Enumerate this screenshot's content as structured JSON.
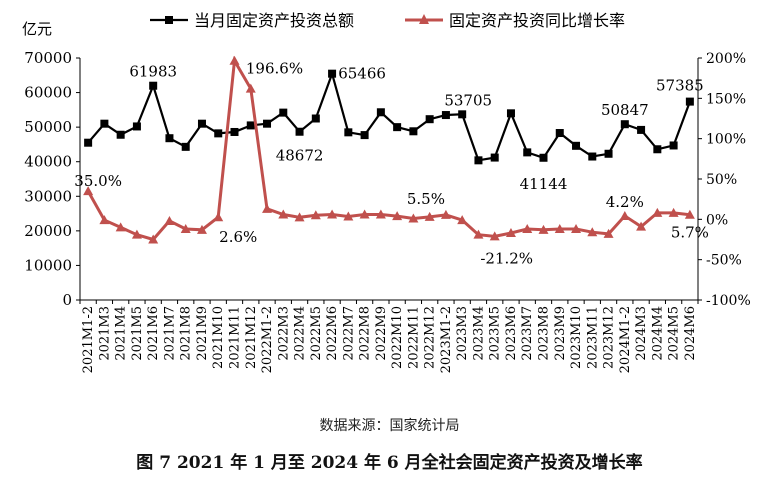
{
  "chart_data": {
    "type": "line",
    "title": "",
    "y_unit_label": "亿元",
    "categories": [
      "2021M1-2",
      "2021M3",
      "2021M4",
      "2021M5",
      "2021M6",
      "2021M7",
      "2021M8",
      "2021M9",
      "2021M10",
      "2021M11",
      "2021M12",
      "2022M1-2",
      "2022M3",
      "2022M4",
      "2022M5",
      "2022M6",
      "2022M7",
      "2022M8",
      "2022M9",
      "2022M10",
      "2022M11",
      "2022M12",
      "2023M1-2",
      "2023M3",
      "2023M4",
      "2023M5",
      "2023M6",
      "2023M7",
      "2023M8",
      "2023M9",
      "2023M10",
      "2023M11",
      "2023M12",
      "2024M1-2",
      "2024M3",
      "2024M4",
      "2024M5",
      "2024M6"
    ],
    "ylim_left": [
      0,
      70000
    ],
    "yticks_left": [
      "0",
      "10000",
      "20000",
      "30000",
      "40000",
      "50000",
      "60000",
      "70000"
    ],
    "ylim_right": [
      -100,
      200
    ],
    "yticks_right": [
      "-100%",
      "-50%",
      "0%",
      "50%",
      "100%",
      "150%",
      "200%"
    ],
    "series": [
      {
        "name": "当月固定资产投资总额",
        "axis": "left",
        "color": "#000000",
        "marker": "square",
        "values": [
          45500,
          51000,
          47800,
          50200,
          61983,
          46800,
          44300,
          51000,
          48200,
          48600,
          50500,
          51000,
          54200,
          48672,
          52500,
          65466,
          48500,
          47700,
          54300,
          50000,
          48800,
          52300,
          53500,
          53705,
          40400,
          41200,
          54000,
          42700,
          41144,
          48300,
          44600,
          41500,
          42300,
          50847,
          49200,
          43600,
          44700,
          57385
        ]
      },
      {
        "name": "固定资产投资同比增长率",
        "axis": "right",
        "color": "#c0504d",
        "marker": "triangle",
        "values": [
          35.0,
          -1.0,
          -10.0,
          -19.0,
          -25.0,
          -2.0,
          -12.0,
          -13.0,
          2.6,
          196.6,
          162.0,
          13.0,
          6.0,
          2.5,
          5.0,
          6.0,
          3.5,
          6.0,
          6.0,
          4.0,
          1.0,
          3.0,
          5.5,
          -1.0,
          -19.0,
          -21.2,
          -17.0,
          -12.0,
          -13.0,
          -12.0,
          -12.0,
          -16.0,
          -18.0,
          4.2,
          -9.0,
          8.0,
          8.0,
          5.7
        ]
      }
    ],
    "data_labels": [
      {
        "series": 0,
        "index": 4,
        "text": "61983"
      },
      {
        "series": 0,
        "index": 13,
        "text": "48672"
      },
      {
        "series": 0,
        "index": 15,
        "text": "65466"
      },
      {
        "series": 0,
        "index": 23,
        "text": "53705"
      },
      {
        "series": 0,
        "index": 28,
        "text": "41144"
      },
      {
        "series": 0,
        "index": 33,
        "text": "50847"
      },
      {
        "series": 0,
        "index": 37,
        "text": "57385"
      },
      {
        "series": 1,
        "index": 0,
        "text": "35.0%"
      },
      {
        "series": 1,
        "index": 8,
        "text": "2.6%"
      },
      {
        "series": 1,
        "index": 9,
        "text": "196.6%"
      },
      {
        "series": 1,
        "index": 22,
        "text": "5.5%"
      },
      {
        "series": 1,
        "index": 25,
        "text": "-21.2%"
      },
      {
        "series": 1,
        "index": 33,
        "text": "4.2%"
      },
      {
        "series": 1,
        "index": 37,
        "text": "5.7%"
      }
    ],
    "legend_position": "top"
  },
  "source_text": "数据来源：国家统计局",
  "caption": "图 7  2021 年 1 月至 2024 年 6 月全社会固定资产投资及增长率"
}
